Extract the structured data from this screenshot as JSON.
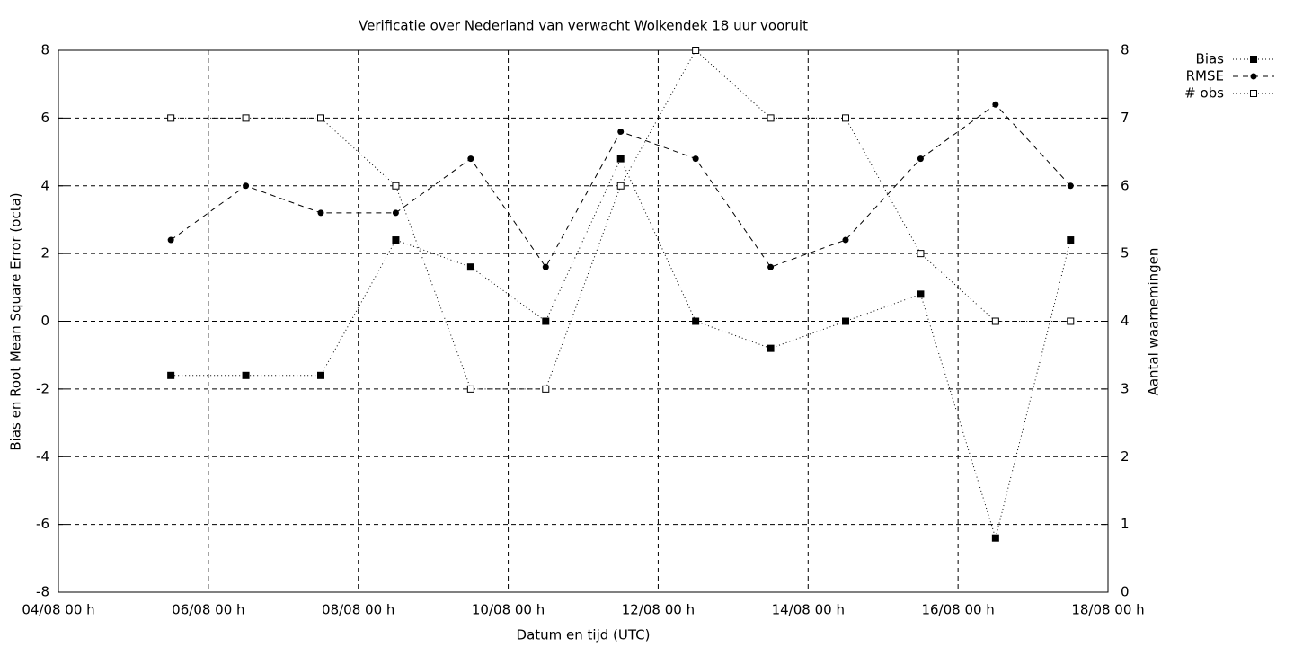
{
  "chart_data": {
    "type": "line",
    "title": "Verificatie over Nederland van verwacht Wolkendek 18 uur vooruit",
    "x_label": "Datum en tijd (UTC)",
    "y_label": "Bias en Root Mean Square Error (octa)",
    "y2_label": "Aantal waarnemingen",
    "x": [
      "05/08 12 h",
      "06/08 12 h",
      "07/08 12 h",
      "08/08 12 h",
      "09/08 12 h",
      "10/08 12 h",
      "11/08 12 h",
      "12/08 12 h",
      "13/08 12 h",
      "14/08 12 h",
      "15/08 12 h",
      "16/08 12 h",
      "17/08 12 h"
    ],
    "xlim": [
      "04/08 00 h",
      "18/08 00 h"
    ],
    "xticks": [
      "04/08 00 h",
      "06/08 00 h",
      "08/08 00 h",
      "10/08 00 h",
      "12/08 00 h",
      "14/08 00 h",
      "16/08 00 h",
      "18/08 00 h"
    ],
    "ylim": [
      -8,
      8
    ],
    "yticks": [
      -8,
      -6,
      -4,
      -2,
      0,
      2,
      4,
      6,
      8
    ],
    "y2lim": [
      0,
      8
    ],
    "y2ticks": [
      0,
      1,
      2,
      3,
      4,
      5,
      6,
      7,
      8
    ],
    "grid": true,
    "legend": "outside-top-right",
    "series": [
      {
        "name": "Bias",
        "color": "#000000",
        "dash": "dotted",
        "marker": "filled-square",
        "values": [
          -1.6,
          -1.6,
          -1.6,
          2.4,
          1.6,
          0,
          4.8,
          0,
          -0.8,
          0,
          0.8,
          -6.4,
          2.4
        ]
      },
      {
        "name": "RMSE",
        "color": "#000000",
        "dash": "dashed",
        "marker": "filled-circle",
        "values": [
          2.4,
          4.0,
          3.2,
          3.2,
          4.8,
          1.6,
          5.6,
          4.8,
          1.6,
          2.4,
          4.8,
          6.4,
          4.0
        ]
      },
      {
        "name": "# obs",
        "color": "#000000",
        "dash": "dotted",
        "marker": "open-square",
        "axis": "y2",
        "values": [
          7,
          7,
          7,
          6,
          3,
          3,
          6,
          8,
          7,
          7,
          5,
          4,
          4
        ]
      }
    ]
  }
}
